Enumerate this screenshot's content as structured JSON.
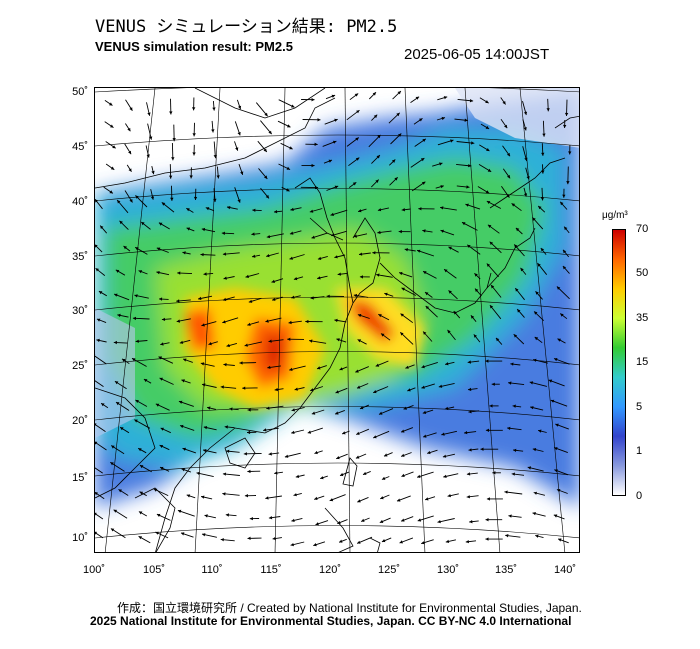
{
  "header": {
    "title_jp": "VENUS シミュレーション結果: PM2.5",
    "title_en": "VENUS simulation result: PM2.5",
    "timestamp": "2025-06-05 14:00JST"
  },
  "map": {
    "lat_labels": [
      "50˚",
      "45˚",
      "40˚",
      "35˚",
      "30˚",
      "25˚",
      "20˚",
      "15˚",
      "10˚"
    ],
    "lon_labels": [
      "100˚",
      "105˚",
      "110˚",
      "115˚",
      "120˚",
      "125˚",
      "130˚",
      "135˚",
      "140˚"
    ],
    "colors": {
      "land_line": "#000000",
      "grid_line": "#000000",
      "arrow": "#000000"
    }
  },
  "colorbar": {
    "unit": "μg/m³",
    "labels": [
      "70",
      "50",
      "35",
      "15",
      "5",
      "1",
      "0"
    ],
    "stops": [
      "#cc0000",
      "#ff6600",
      "#ffcc00",
      "#ccff33",
      "#33cc33",
      "#33cccc",
      "#3399ff",
      "#3344cc",
      "#8899dd",
      "#ffffff"
    ]
  },
  "credits": {
    "line1": "作成：国立環境研究所 / Created by National Institute for Environmental Studies, Japan.",
    "line2": "2025 National Institute for Environmental Studies, Japan. CC BY-NC 4.0 International"
  }
}
